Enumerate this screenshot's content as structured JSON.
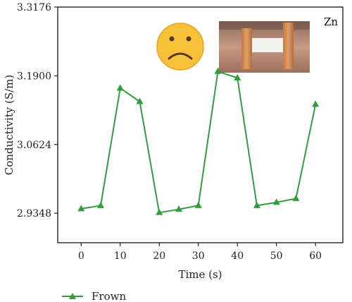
{
  "chart_data": {
    "type": "line",
    "xlabel": "Time (s)",
    "ylabel": "Conductivity (S/m)",
    "x_ticks": [
      "0",
      "10",
      "20",
      "30",
      "40",
      "50",
      "60"
    ],
    "y_ticks": [
      "2.9348",
      "3.0624",
      "3.1900",
      "3.3176"
    ],
    "xlim": [
      -6,
      67
    ],
    "ylim": [
      2.9348,
      3.3176
    ],
    "y_axis_min_label_at_bottom_tick": true,
    "grid": false,
    "legend_position": "bottom-left",
    "annotation": "Zn",
    "series": [
      {
        "name": "Frown",
        "color": "#2e9e3e",
        "marker": "triangle",
        "x": [
          0,
          5,
          10,
          15,
          20,
          25,
          30,
          35,
          40,
          45,
          50,
          55,
          60
        ],
        "y": [
          2.943,
          2.949,
          3.167,
          3.142,
          2.936,
          2.942,
          2.949,
          3.198,
          3.186,
          2.949,
          2.955,
          2.962,
          3.137
        ]
      }
    ]
  },
  "image_content": {
    "emoji": "frowning-face",
    "photo": "forehead-sensor-photo"
  }
}
